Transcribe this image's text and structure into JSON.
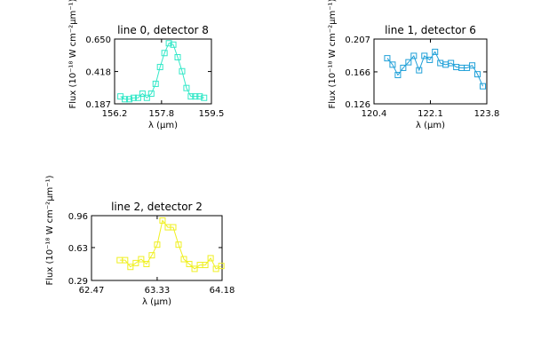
{
  "chart_data": [
    {
      "type": "line",
      "title": "line 0, detector 8",
      "xlabel": "λ (μm)",
      "ylabel": "Flux (10⁻¹⁸ W cm⁻²μm⁻¹)",
      "color": "#33e8c8",
      "x": [
        156.4,
        156.55,
        156.7,
        156.85,
        157.0,
        157.15,
        157.3,
        157.45,
        157.6,
        157.75,
        157.9,
        158.05,
        158.2,
        158.35,
        158.5,
        158.65,
        158.8,
        158.95,
        159.1,
        159.25
      ],
      "values": [
        0.24,
        0.22,
        0.22,
        0.23,
        0.23,
        0.26,
        0.23,
        0.26,
        0.33,
        0.45,
        0.55,
        0.62,
        0.61,
        0.52,
        0.42,
        0.3,
        0.24,
        0.24,
        0.24,
        0.23
      ],
      "xlim": [
        156.2,
        159.5
      ],
      "ylim": [
        0.187,
        0.65
      ],
      "xticks": [
        156.2,
        157.8,
        159.5
      ],
      "yticks": [
        0.187,
        0.418,
        {
          "value": 0.65,
          "label": "0.650"
        }
      ]
    },
    {
      "type": "line",
      "title": "line 1, detector 6",
      "xlabel": "λ (μm)",
      "ylabel": "Flux (10⁻¹⁸ W cm⁻²μm⁻¹)",
      "color": "#1fa0d8",
      "x": [
        120.8,
        120.96,
        121.12,
        121.28,
        121.44,
        121.6,
        121.76,
        121.92,
        122.08,
        122.24,
        122.4,
        122.56,
        122.72,
        122.88,
        123.04,
        123.2,
        123.36,
        123.52,
        123.68
      ],
      "values": [
        0.183,
        0.175,
        0.162,
        0.171,
        0.178,
        0.186,
        0.168,
        0.186,
        0.181,
        0.191,
        0.177,
        0.175,
        0.177,
        0.172,
        0.171,
        0.171,
        0.174,
        0.163,
        0.148
      ],
      "xlim": [
        120.4,
        123.8
      ],
      "ylim": [
        0.126,
        0.207
      ],
      "xticks": [
        120.4,
        122.1,
        123.8
      ],
      "yticks": [
        0.126,
        0.166,
        0.207
      ]
    },
    {
      "type": "line",
      "title": "line 2, detector 2",
      "xlabel": "λ (μm)",
      "ylabel": "Flux (10⁻¹⁸ W cm⁻²μm⁻¹)",
      "color": "#f0f020",
      "x": [
        62.84,
        62.91,
        62.98,
        63.05,
        63.12,
        63.19,
        63.26,
        63.33,
        63.4,
        63.47,
        63.54,
        63.61,
        63.68,
        63.75,
        63.82,
        63.89,
        63.96,
        64.03,
        64.1,
        64.17
      ],
      "values": [
        0.5,
        0.5,
        0.43,
        0.47,
        0.51,
        0.46,
        0.55,
        0.66,
        0.91,
        0.84,
        0.84,
        0.66,
        0.51,
        0.46,
        0.41,
        0.45,
        0.45,
        0.52,
        0.41,
        0.44
      ],
      "xlim": [
        62.47,
        64.18
      ],
      "ylim": [
        0.29,
        0.96
      ],
      "xticks": [
        62.47,
        63.33,
        64.18
      ],
      "yticks": [
        0.29,
        0.63,
        0.96
      ]
    }
  ]
}
